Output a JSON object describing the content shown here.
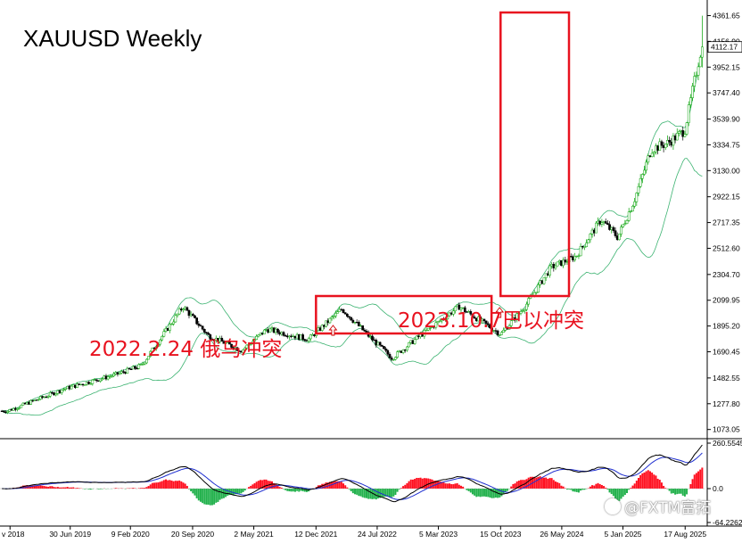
{
  "title": "XAUUSD  Weekly",
  "annotations": {
    "box1_label": "2022.2.24 俄乌冲突",
    "box2_label": "2023.10.7巴以冲突"
  },
  "watermark": "@FXTM富拓",
  "price_scale": [
    "4361.65",
    "4156.90",
    "3952.15",
    "3747.40",
    "3539.90",
    "3334.75",
    "3130.00",
    "2922.15",
    "2717.35",
    "2512.60",
    "2304.70",
    "2099.95",
    "1895.20",
    "1690.45",
    "1482.55",
    "1277.80",
    "1073.05"
  ],
  "current_price": "4112.17",
  "osc_scale": [
    "260.5545",
    "0.0",
    "-64.2262"
  ],
  "time_labels": [
    "v 2018",
    "30 Jun 2019",
    "9 Feb 2020",
    "20 Sep 2020",
    "2 May 2021",
    "12 Dec 2021",
    "24 Jul 2022",
    "5 Mar 2023",
    "15 Oct 2023",
    "26 May 2024",
    "5 Jan 2025",
    "17 Aug 2025"
  ],
  "colors": {
    "bull": "#00a000",
    "bear": "#000000",
    "band": "#3cb371",
    "box": "#e8121f",
    "macd_pos": "#ff1020",
    "macd_neg": "#22b14c",
    "line_fast": "#000000",
    "line_slow": "#1f2fd0",
    "scale_line": "#000000"
  },
  "chart_data": [
    {
      "type": "candlestick",
      "title": "XAUUSD  Weekly",
      "timeframe": "weekly",
      "ylim": [
        1000,
        4450
      ],
      "key_points": [
        {
          "date": "2018-11",
          "close": 1220
        },
        {
          "date": "2019-06",
          "close": 1400
        },
        {
          "date": "2019-12",
          "close": 1510
        },
        {
          "date": "2020-03",
          "close": 1580
        },
        {
          "date": "2020-08",
          "close": 2050
        },
        {
          "date": "2020-11",
          "close": 1820
        },
        {
          "date": "2021-03",
          "close": 1700
        },
        {
          "date": "2021-06",
          "close": 1870
        },
        {
          "date": "2021-11",
          "close": 1790
        },
        {
          "date": "2022-03",
          "close": 2030
        },
        {
          "date": "2022-06",
          "close": 1830
        },
        {
          "date": "2022-09",
          "close": 1640
        },
        {
          "date": "2022-12",
          "close": 1800
        },
        {
          "date": "2023-05",
          "close": 2050
        },
        {
          "date": "2023-10",
          "close": 1830
        },
        {
          "date": "2024-01",
          "close": 2060
        },
        {
          "date": "2024-04",
          "close": 2360
        },
        {
          "date": "2024-07",
          "close": 2450
        },
        {
          "date": "2024-10",
          "close": 2740
        },
        {
          "date": "2024-12",
          "close": 2600
        },
        {
          "date": "2025-02",
          "close": 2900
        },
        {
          "date": "2025-04",
          "close": 3300
        },
        {
          "date": "2025-06",
          "close": 3350
        },
        {
          "date": "2025-08",
          "close": 3450
        },
        {
          "date": "2025-10",
          "close": 4112
        }
      ],
      "annotations": [
        "2022.2.24 俄乌冲突",
        "2023.10.7巴以冲突"
      ]
    },
    {
      "type": "bar",
      "role": "oscillator",
      "ylim": [
        -64.2262,
        260.5545
      ]
    }
  ]
}
